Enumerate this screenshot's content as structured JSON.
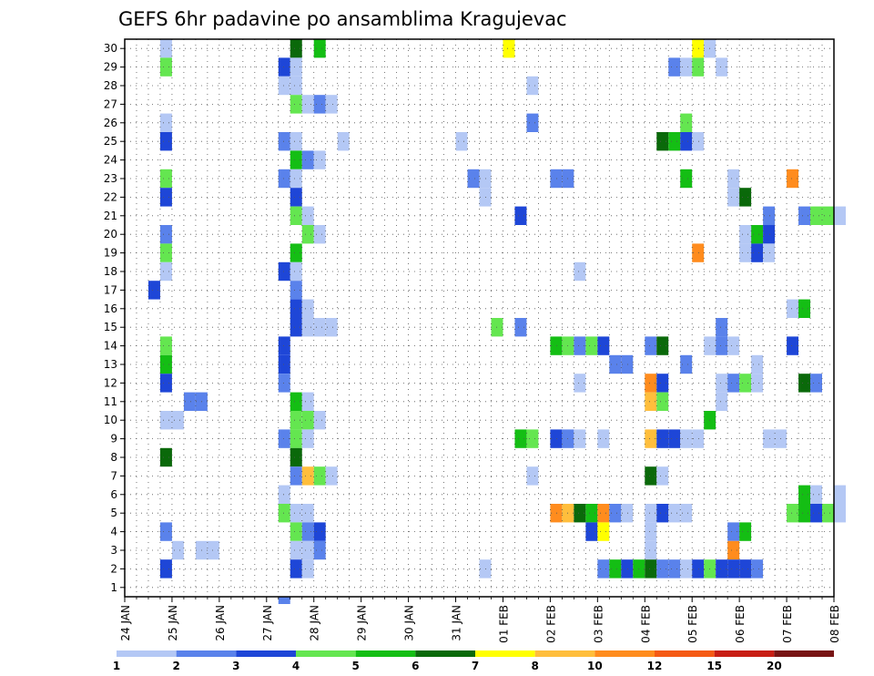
{
  "chart_data": {
    "type": "heatmap",
    "title": "GEFS 6hr padavine po ansamblima Kragujevac",
    "xlabel": "",
    "ylabel": "",
    "x_tick_labels": [
      "24 JAN",
      "25 JAN",
      "26 JAN",
      "27 JAN",
      "28 JAN",
      "29 JAN",
      "30 JAN",
      "31 JAN",
      "01 FEB",
      "02 FEB",
      "03 FEB",
      "04 FEB",
      "05 FEB",
      "06 FEB",
      "07 FEB",
      "08 FEB"
    ],
    "x_step": "6hr",
    "y_members": [
      1,
      2,
      3,
      4,
      5,
      6,
      7,
      8,
      9,
      10,
      11,
      12,
      13,
      14,
      15,
      16,
      17,
      18,
      19,
      20,
      21,
      22,
      23,
      24,
      25,
      26,
      27,
      28,
      29,
      30
    ],
    "ylim": [
      0.5,
      30.5
    ],
    "grid": true,
    "colorbar": {
      "labels": [
        "1",
        "2",
        "3",
        "4",
        "5",
        "6",
        "7",
        "8",
        "10",
        "12",
        "15",
        "20"
      ],
      "colors": [
        "#b4c8f5",
        "#5a82eb",
        "#1e46d7",
        "#64e650",
        "#14be14",
        "#0a690a",
        "#ffff00",
        "#ffbe3c",
        "#ff8c1e",
        "#f55a14",
        "#c81e14",
        "#781414"
      ]
    },
    "cells": [
      {
        "m": 30,
        "c": [
          [
            3,
            1
          ],
          [
            14,
            6
          ],
          [
            16,
            5
          ],
          [
            32,
            7
          ],
          [
            48,
            7
          ],
          [
            49,
            1
          ]
        ]
      },
      {
        "m": 29,
        "c": [
          [
            3,
            4
          ],
          [
            13,
            3
          ],
          [
            14,
            1
          ],
          [
            46,
            2
          ],
          [
            47,
            1
          ],
          [
            48,
            4
          ],
          [
            50,
            1
          ]
        ]
      },
      {
        "m": 28,
        "c": [
          [
            13,
            1
          ],
          [
            14,
            1
          ],
          [
            34,
            1
          ]
        ]
      },
      {
        "m": 27,
        "c": [
          [
            14,
            4
          ],
          [
            15,
            1
          ],
          [
            16,
            2
          ],
          [
            17,
            1
          ]
        ]
      },
      {
        "m": 26,
        "c": [
          [
            3,
            1
          ],
          [
            34,
            2
          ],
          [
            47,
            4
          ]
        ]
      },
      {
        "m": 25,
        "c": [
          [
            3,
            3
          ],
          [
            13,
            2
          ],
          [
            14,
            1
          ],
          [
            18,
            1
          ],
          [
            28,
            1
          ],
          [
            45,
            6
          ],
          [
            46,
            5
          ],
          [
            47,
            3
          ],
          [
            48,
            1
          ]
        ]
      },
      {
        "m": 24,
        "c": [
          [
            14,
            5
          ],
          [
            15,
            2
          ],
          [
            16,
            1
          ]
        ]
      },
      {
        "m": 23,
        "c": [
          [
            3,
            4
          ],
          [
            13,
            2
          ],
          [
            14,
            1
          ],
          [
            29,
            2
          ],
          [
            30,
            1
          ],
          [
            36,
            2
          ],
          [
            37,
            2
          ],
          [
            47,
            5
          ],
          [
            51,
            1
          ],
          [
            56,
            9
          ]
        ]
      },
      {
        "m": 22,
        "c": [
          [
            3,
            3
          ],
          [
            14,
            3
          ],
          [
            30,
            1
          ],
          [
            51,
            1
          ],
          [
            52,
            6
          ]
        ]
      },
      {
        "m": 21,
        "c": [
          [
            14,
            4
          ],
          [
            15,
            1
          ],
          [
            33,
            3
          ],
          [
            54,
            2
          ],
          [
            57,
            2
          ],
          [
            58,
            4
          ],
          [
            59,
            4
          ],
          [
            60,
            1
          ]
        ]
      },
      {
        "m": 20,
        "c": [
          [
            3,
            2
          ],
          [
            15,
            4
          ],
          [
            16,
            1
          ],
          [
            52,
            1
          ],
          [
            53,
            5
          ],
          [
            54,
            3
          ]
        ]
      },
      {
        "m": 19,
        "c": [
          [
            3,
            4
          ],
          [
            14,
            5
          ],
          [
            48,
            9
          ],
          [
            52,
            1
          ],
          [
            53,
            3
          ],
          [
            54,
            1
          ]
        ]
      },
      {
        "m": 18,
        "c": [
          [
            3,
            1
          ],
          [
            13,
            3
          ],
          [
            14,
            1
          ],
          [
            38,
            1
          ]
        ]
      },
      {
        "m": 17,
        "c": [
          [
            2,
            3
          ],
          [
            14,
            2
          ]
        ]
      },
      {
        "m": 16,
        "c": [
          [
            14,
            3
          ],
          [
            15,
            1
          ],
          [
            56,
            1
          ],
          [
            57,
            5
          ]
        ]
      },
      {
        "m": 15,
        "c": [
          [
            14,
            3
          ],
          [
            15,
            1
          ],
          [
            16,
            1
          ],
          [
            17,
            1
          ],
          [
            31,
            4
          ],
          [
            33,
            2
          ],
          [
            50,
            2
          ]
        ]
      },
      {
        "m": 14,
        "c": [
          [
            3,
            4
          ],
          [
            13,
            3
          ],
          [
            36,
            5
          ],
          [
            37,
            4
          ],
          [
            38,
            2
          ],
          [
            39,
            4
          ],
          [
            40,
            3
          ],
          [
            44,
            2
          ],
          [
            45,
            6
          ],
          [
            49,
            1
          ],
          [
            50,
            2
          ],
          [
            51,
            1
          ],
          [
            56,
            3
          ]
        ]
      },
      {
        "m": 13,
        "c": [
          [
            3,
            5
          ],
          [
            13,
            3
          ],
          [
            41,
            2
          ],
          [
            42,
            2
          ],
          [
            47,
            2
          ],
          [
            53,
            1
          ]
        ]
      },
      {
        "m": 12,
        "c": [
          [
            3,
            3
          ],
          [
            13,
            2
          ],
          [
            38,
            1
          ],
          [
            44,
            9
          ],
          [
            45,
            3
          ],
          [
            50,
            1
          ],
          [
            51,
            2
          ],
          [
            52,
            4
          ],
          [
            53,
            1
          ],
          [
            57,
            6
          ],
          [
            58,
            2
          ]
        ]
      },
      {
        "m": 11,
        "c": [
          [
            5,
            2
          ],
          [
            6,
            2
          ],
          [
            14,
            5
          ],
          [
            15,
            1
          ],
          [
            44,
            8
          ],
          [
            45,
            4
          ],
          [
            50,
            1
          ]
        ]
      },
      {
        "m": 10,
        "c": [
          [
            3,
            1
          ],
          [
            4,
            1
          ],
          [
            14,
            4
          ],
          [
            15,
            4
          ],
          [
            16,
            1
          ],
          [
            49,
            5
          ]
        ]
      },
      {
        "m": 9,
        "c": [
          [
            13,
            2
          ],
          [
            14,
            4
          ],
          [
            15,
            1
          ],
          [
            33,
            5
          ],
          [
            34,
            4
          ],
          [
            36,
            3
          ],
          [
            37,
            2
          ],
          [
            38,
            1
          ],
          [
            40,
            1
          ],
          [
            44,
            8
          ],
          [
            45,
            3
          ],
          [
            46,
            3
          ],
          [
            47,
            1
          ],
          [
            48,
            1
          ],
          [
            54,
            1
          ],
          [
            55,
            1
          ]
        ]
      },
      {
        "m": 8,
        "c": [
          [
            3,
            6
          ],
          [
            14,
            6
          ]
        ]
      },
      {
        "m": 7,
        "c": [
          [
            14,
            2
          ],
          [
            15,
            8
          ],
          [
            16,
            4
          ],
          [
            17,
            1
          ],
          [
            34,
            1
          ],
          [
            44,
            6
          ],
          [
            45,
            1
          ]
        ]
      },
      {
        "m": 6,
        "c": [
          [
            13,
            1
          ],
          [
            57,
            5
          ],
          [
            58,
            1
          ],
          [
            60,
            1
          ]
        ]
      },
      {
        "m": 5,
        "c": [
          [
            13,
            4
          ],
          [
            14,
            1
          ],
          [
            15,
            1
          ],
          [
            36,
            9
          ],
          [
            37,
            8
          ],
          [
            38,
            6
          ],
          [
            39,
            5
          ],
          [
            40,
            9
          ],
          [
            41,
            2
          ],
          [
            42,
            1
          ],
          [
            44,
            1
          ],
          [
            45,
            3
          ],
          [
            46,
            1
          ],
          [
            47,
            1
          ],
          [
            56,
            4
          ],
          [
            57,
            5
          ],
          [
            58,
            3
          ],
          [
            59,
            4
          ],
          [
            60,
            1
          ]
        ]
      },
      {
        "m": 4,
        "c": [
          [
            3,
            2
          ],
          [
            14,
            4
          ],
          [
            15,
            2
          ],
          [
            16,
            3
          ],
          [
            39,
            3
          ],
          [
            40,
            7
          ],
          [
            44,
            1
          ],
          [
            51,
            2
          ],
          [
            52,
            5
          ]
        ]
      },
      {
        "m": 3,
        "c": [
          [
            4,
            1
          ],
          [
            6,
            1
          ],
          [
            7,
            1
          ],
          [
            14,
            1
          ],
          [
            15,
            1
          ],
          [
            16,
            2
          ],
          [
            44,
            1
          ],
          [
            51,
            9
          ]
        ]
      },
      {
        "m": 2,
        "c": [
          [
            3,
            3
          ],
          [
            14,
            3
          ],
          [
            15,
            1
          ],
          [
            30,
            1
          ],
          [
            40,
            2
          ],
          [
            41,
            5
          ],
          [
            42,
            3
          ],
          [
            43,
            5
          ],
          [
            44,
            6
          ],
          [
            45,
            2
          ],
          [
            46,
            2
          ],
          [
            47,
            1
          ],
          [
            48,
            3
          ],
          [
            49,
            4
          ],
          [
            50,
            3
          ],
          [
            51,
            3
          ],
          [
            52,
            3
          ],
          [
            53,
            2
          ]
        ]
      },
      {
        "m": 1,
        "c": []
      }
    ],
    "extra_cells": [
      {
        "m": 0,
        "s": 13,
        "v": 2
      }
    ]
  }
}
